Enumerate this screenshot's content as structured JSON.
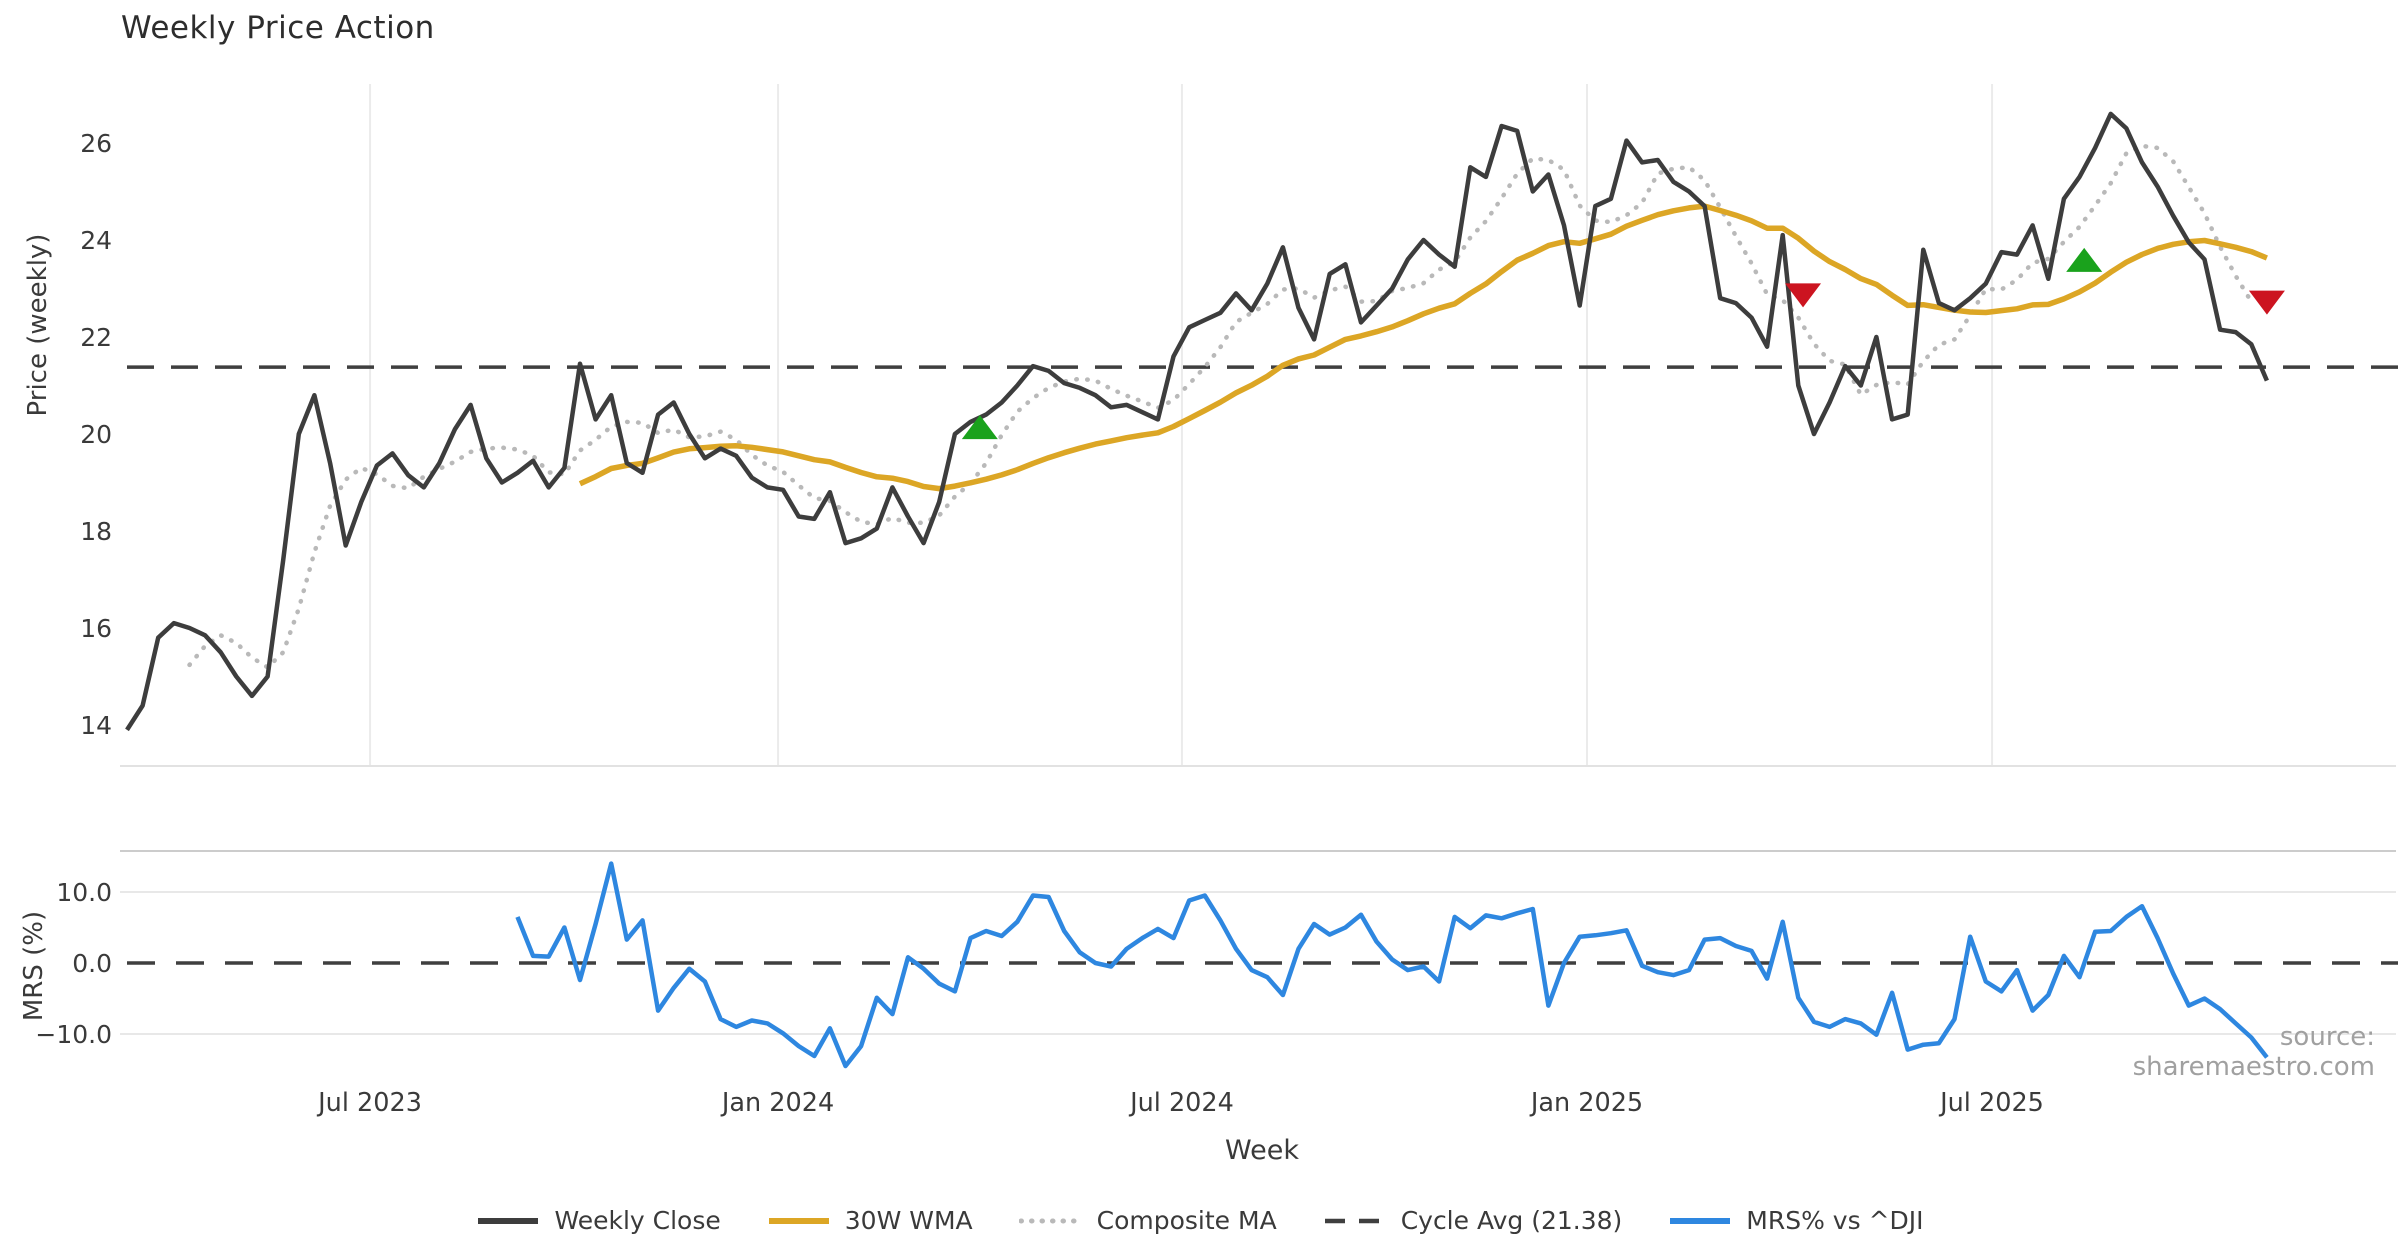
{
  "labels": {
    "title": "Weekly Price Action",
    "price_axis": "Price (weekly)",
    "mrs_axis": "MRS (%)",
    "x_axis": "Week",
    "source": "source: sharemaestro.com"
  },
  "legend": {
    "items": [
      {
        "label": "Weekly Close",
        "swatch": "solid",
        "color": "#3d3d3d"
      },
      {
        "label": "30W WMA",
        "swatch": "solid",
        "color": "#dca625"
      },
      {
        "label": "Composite MA",
        "swatch": "dotted",
        "color": "#b9b9b9"
      },
      {
        "label": "Cycle Avg (21.38)",
        "swatch": "dashed",
        "color": "#3f3f3f"
      },
      {
        "label": "MRS% vs ^DJI",
        "swatch": "solid",
        "color": "#2e87e0"
      }
    ]
  },
  "chart_data": [
    {
      "type": "line",
      "title": "Weekly Price Action",
      "xlabel": "Week",
      "ylabel": "Price (weekly)",
      "ylim": [
        13.1,
        27.2
      ],
      "yticks": [
        26,
        24,
        22,
        20,
        18,
        16,
        14
      ],
      "x_tick_labels": [
        {
          "label": "Jul 2023",
          "week": 15.56
        },
        {
          "label": "Jan 2024",
          "week": 41.68
        },
        {
          "label": "Jul 2024",
          "week": 67.54
        },
        {
          "label": "Jan 2025",
          "week": 93.47
        },
        {
          "label": "Jul 2025",
          "week": 119.4
        }
      ],
      "grid": "vertical-only",
      "legend_position": "bottom-center",
      "series": [
        {
          "name": "Weekly Close",
          "color": "#3d3d3d",
          "style": "solid",
          "start_week": 0,
          "values": [
            13.9,
            14.4,
            15.8,
            16.1,
            16.0,
            15.85,
            15.5,
            15.0,
            14.6,
            15.0,
            17.4,
            20.0,
            20.8,
            19.4,
            17.7,
            18.6,
            19.35,
            19.6,
            19.15,
            18.9,
            19.4,
            20.1,
            20.6,
            19.5,
            19.0,
            19.2,
            19.45,
            18.9,
            19.3,
            21.45,
            20.3,
            20.8,
            19.4,
            19.2,
            20.4,
            20.65,
            20.0,
            19.5,
            19.7,
            19.55,
            19.1,
            18.9,
            18.85,
            18.3,
            18.25,
            18.8,
            17.75,
            17.85,
            18.05,
            18.9,
            18.3,
            17.75,
            18.6,
            20.0,
            20.25,
            20.4,
            20.65,
            21.0,
            21.4,
            21.3,
            21.05,
            20.95,
            20.8,
            20.55,
            20.6,
            20.45,
            20.3,
            21.6,
            22.2,
            22.35,
            22.5,
            22.9,
            22.55,
            23.1,
            23.85,
            22.6,
            21.95,
            23.3,
            23.5,
            22.3,
            22.65,
            23.0,
            23.6,
            24.0,
            23.7,
            23.45,
            25.5,
            25.3,
            26.35,
            26.25,
            25.0,
            25.35,
            24.3,
            22.65,
            24.7,
            24.85,
            26.05,
            25.6,
            25.65,
            25.2,
            25.0,
            24.7,
            22.8,
            22.7,
            22.4,
            21.8,
            24.1,
            21.0,
            20.0,
            20.65,
            21.4,
            21.0,
            22.0,
            20.3,
            20.4,
            23.8,
            22.7,
            22.55,
            22.8,
            23.1,
            23.75,
            23.7,
            24.3,
            23.2,
            24.85,
            25.3,
            25.9,
            26.6,
            26.3,
            25.6,
            25.1,
            24.5,
            23.95,
            23.6,
            22.15,
            22.1,
            21.85,
            21.1
          ]
        },
        {
          "name": "30W WMA",
          "color": "#dca625",
          "style": "solid",
          "derived": "wma",
          "window": 30
        },
        {
          "name": "Composite MA",
          "color": "#b9b9b9",
          "style": "dotted",
          "derived": "sma",
          "window": 5
        },
        {
          "name": "Cycle Avg",
          "color": "#3f3f3f",
          "style": "dashed",
          "value": 21.38
        }
      ],
      "markers": {
        "buy_color": "#1aa21c",
        "sell_color": "#cc1420",
        "buy": [
          {
            "week": 54.6,
            "price": 20.1
          },
          {
            "week": 125.3,
            "price": 23.55
          }
        ],
        "sell": [
          {
            "week": 107.3,
            "price": 22.9
          },
          {
            "week": 137.0,
            "price": 22.75
          }
        ]
      }
    },
    {
      "type": "line",
      "xlabel": "Week",
      "ylabel": "MRS (%)",
      "ylim": [
        -15.8,
        15.8
      ],
      "yticks": [
        {
          "label": "10.0",
          "value": 10
        },
        {
          "label": "0.0",
          "value": 0
        },
        {
          "label": "−10.0",
          "value": -10
        }
      ],
      "zero_line": 0,
      "series": [
        {
          "name": "MRS% vs ^DJI",
          "color": "#2e87e0",
          "style": "solid",
          "start_week": 25,
          "values": [
            6.5,
            1.0,
            0.9,
            5.0,
            -2.4,
            5.5,
            14.0,
            3.3,
            6.0,
            -6.7,
            -3.5,
            -0.8,
            -2.6,
            -7.9,
            -9.0,
            -8.1,
            -8.5,
            -9.9,
            -11.7,
            -13.1,
            -9.2,
            -14.5,
            -11.7,
            -4.9,
            -7.2,
            0.8,
            -0.8,
            -2.9,
            -4.0,
            3.5,
            4.5,
            3.8,
            5.8,
            9.5,
            9.3,
            4.5,
            1.5,
            0.0,
            -0.5,
            2.0,
            3.5,
            4.8,
            3.5,
            8.8,
            9.5,
            6.0,
            2.0,
            -1.0,
            -2.0,
            -4.5,
            2.0,
            5.5,
            4.0,
            5.0,
            6.8,
            3.0,
            0.5,
            -1.0,
            -0.5,
            -2.6,
            6.5,
            4.9,
            6.7,
            6.3,
            7.0,
            7.6,
            -6.0,
            0.0,
            3.7,
            3.9,
            4.2,
            4.6,
            -0.4,
            -1.3,
            -1.7,
            -1.0,
            3.3,
            3.5,
            2.4,
            1.7,
            -2.2,
            5.8,
            -4.9,
            -8.3,
            -9.0,
            -7.9,
            -8.5,
            -10.1,
            -4.2,
            -12.2,
            -11.5,
            -11.3,
            -7.9,
            3.7,
            -2.6,
            -4.0,
            -1.0,
            -6.7,
            -4.5,
            1.0,
            -2.0,
            4.4,
            4.5,
            6.5,
            8.0,
            3.5,
            -1.5,
            -6.0,
            -5.0,
            -6.5,
            -8.5,
            -10.5,
            -13.3
          ]
        }
      ]
    }
  ]
}
